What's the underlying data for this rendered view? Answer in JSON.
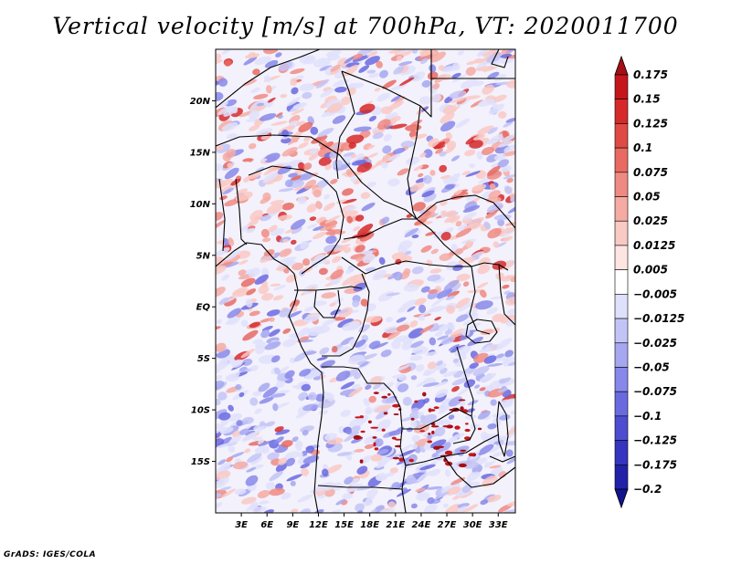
{
  "title": "Vertical velocity [m/s] at 700hPa, VT: 2020011700",
  "footer": "GrADS: IGES/COLA",
  "map": {
    "variable_unit": "m/s",
    "level": "700hPa",
    "valid_time": "2020011700",
    "lon_range": [
      0,
      35
    ],
    "lat_range": [
      -20,
      25
    ],
    "lat_ticks": [
      {
        "value": 20,
        "label": "20N"
      },
      {
        "value": 15,
        "label": "15N"
      },
      {
        "value": 10,
        "label": "10N"
      },
      {
        "value": 5,
        "label": "5N"
      },
      {
        "value": 0,
        "label": "EQ"
      },
      {
        "value": -5,
        "label": "5S"
      },
      {
        "value": -10,
        "label": "10S"
      },
      {
        "value": -15,
        "label": "15S"
      }
    ],
    "lon_ticks": [
      {
        "value": 3,
        "label": "3E"
      },
      {
        "value": 6,
        "label": "6E"
      },
      {
        "value": 9,
        "label": "9E"
      },
      {
        "value": 12,
        "label": "12E"
      },
      {
        "value": 15,
        "label": "15E"
      },
      {
        "value": 18,
        "label": "18E"
      },
      {
        "value": 21,
        "label": "21E"
      },
      {
        "value": 24,
        "label": "24E"
      },
      {
        "value": 27,
        "label": "27E"
      },
      {
        "value": 30,
        "label": "30E"
      },
      {
        "value": 33,
        "label": "33E"
      }
    ]
  },
  "colorbar": {
    "levels": [
      {
        "label": "0.175"
      },
      {
        "label": "0.15"
      },
      {
        "label": "0.125"
      },
      {
        "label": "0.1"
      },
      {
        "label": "0.075"
      },
      {
        "label": "0.05"
      },
      {
        "label": "0.025"
      },
      {
        "label": "0.0125"
      },
      {
        "label": "0.005"
      },
      {
        "label": "−0.005"
      },
      {
        "label": "−0.0125"
      },
      {
        "label": "−0.025"
      },
      {
        "label": "−0.05"
      },
      {
        "label": "−0.075"
      },
      {
        "label": "−0.1"
      },
      {
        "label": "−0.125"
      },
      {
        "label": "−0.175"
      },
      {
        "label": "−0.2"
      }
    ],
    "colors": [
      "#a50f15",
      "#c5161c",
      "#d62a2a",
      "#e04a44",
      "#e86a62",
      "#ef8a82",
      "#f5aaa3",
      "#f9c9c4",
      "#fde5e2",
      "#ffffff",
      "#dfe0fb",
      "#c3c4f6",
      "#a5a7f0",
      "#8788ea",
      "#6a6ae0",
      "#4d4dd2",
      "#3535bf",
      "#2222a8",
      "#13138f"
    ]
  }
}
